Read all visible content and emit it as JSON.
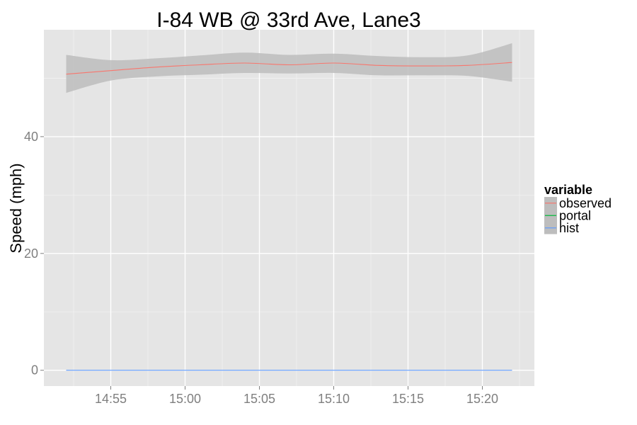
{
  "chart_data": {
    "type": "line",
    "title": "I-84 WB @ 33rd Ave, Lane3",
    "xlabel": "",
    "ylabel": "Speed (mph)",
    "x_type": "time",
    "x_ticks": [
      "14:55",
      "15:00",
      "15:05",
      "15:10",
      "15:15",
      "15:20"
    ],
    "xlim": [
      "14:50:30",
      "15:23:30"
    ],
    "y_ticks": [
      0,
      20,
      40
    ],
    "ylim": [
      -2.7,
      58.3
    ],
    "grid": true,
    "legend": {
      "title": "variable",
      "placement": "right",
      "entries": [
        "observed",
        "portal",
        "hist"
      ]
    },
    "colors": {
      "observed": "#F8766D",
      "portal": "#00BA38",
      "hist": "#619CFF",
      "panel": "#E5E5E5",
      "band": "#BDBDBD",
      "grid_major": "#FFFFFF",
      "grid_minor": "#F2F2F2"
    },
    "series": [
      {
        "name": "observed",
        "x": [
          "14:52",
          "14:55",
          "14:58",
          "15:01",
          "15:04",
          "15:07",
          "15:10",
          "15:13",
          "15:16",
          "15:19",
          "15:22"
        ],
        "y": [
          50.7,
          51.3,
          51.9,
          52.3,
          52.6,
          52.3,
          52.6,
          52.2,
          52.1,
          52.2,
          52.7
        ],
        "ci_low": [
          47.5,
          49.6,
          50.3,
          50.6,
          50.9,
          50.8,
          50.9,
          50.5,
          50.5,
          50.4,
          49.4
        ],
        "ci_high": [
          54.0,
          53.1,
          53.4,
          53.9,
          54.4,
          54.0,
          54.2,
          53.8,
          53.6,
          53.9,
          56.0
        ]
      },
      {
        "name": "hist",
        "x": [
          "14:52",
          "15:22"
        ],
        "y": [
          0,
          0
        ]
      }
    ]
  }
}
